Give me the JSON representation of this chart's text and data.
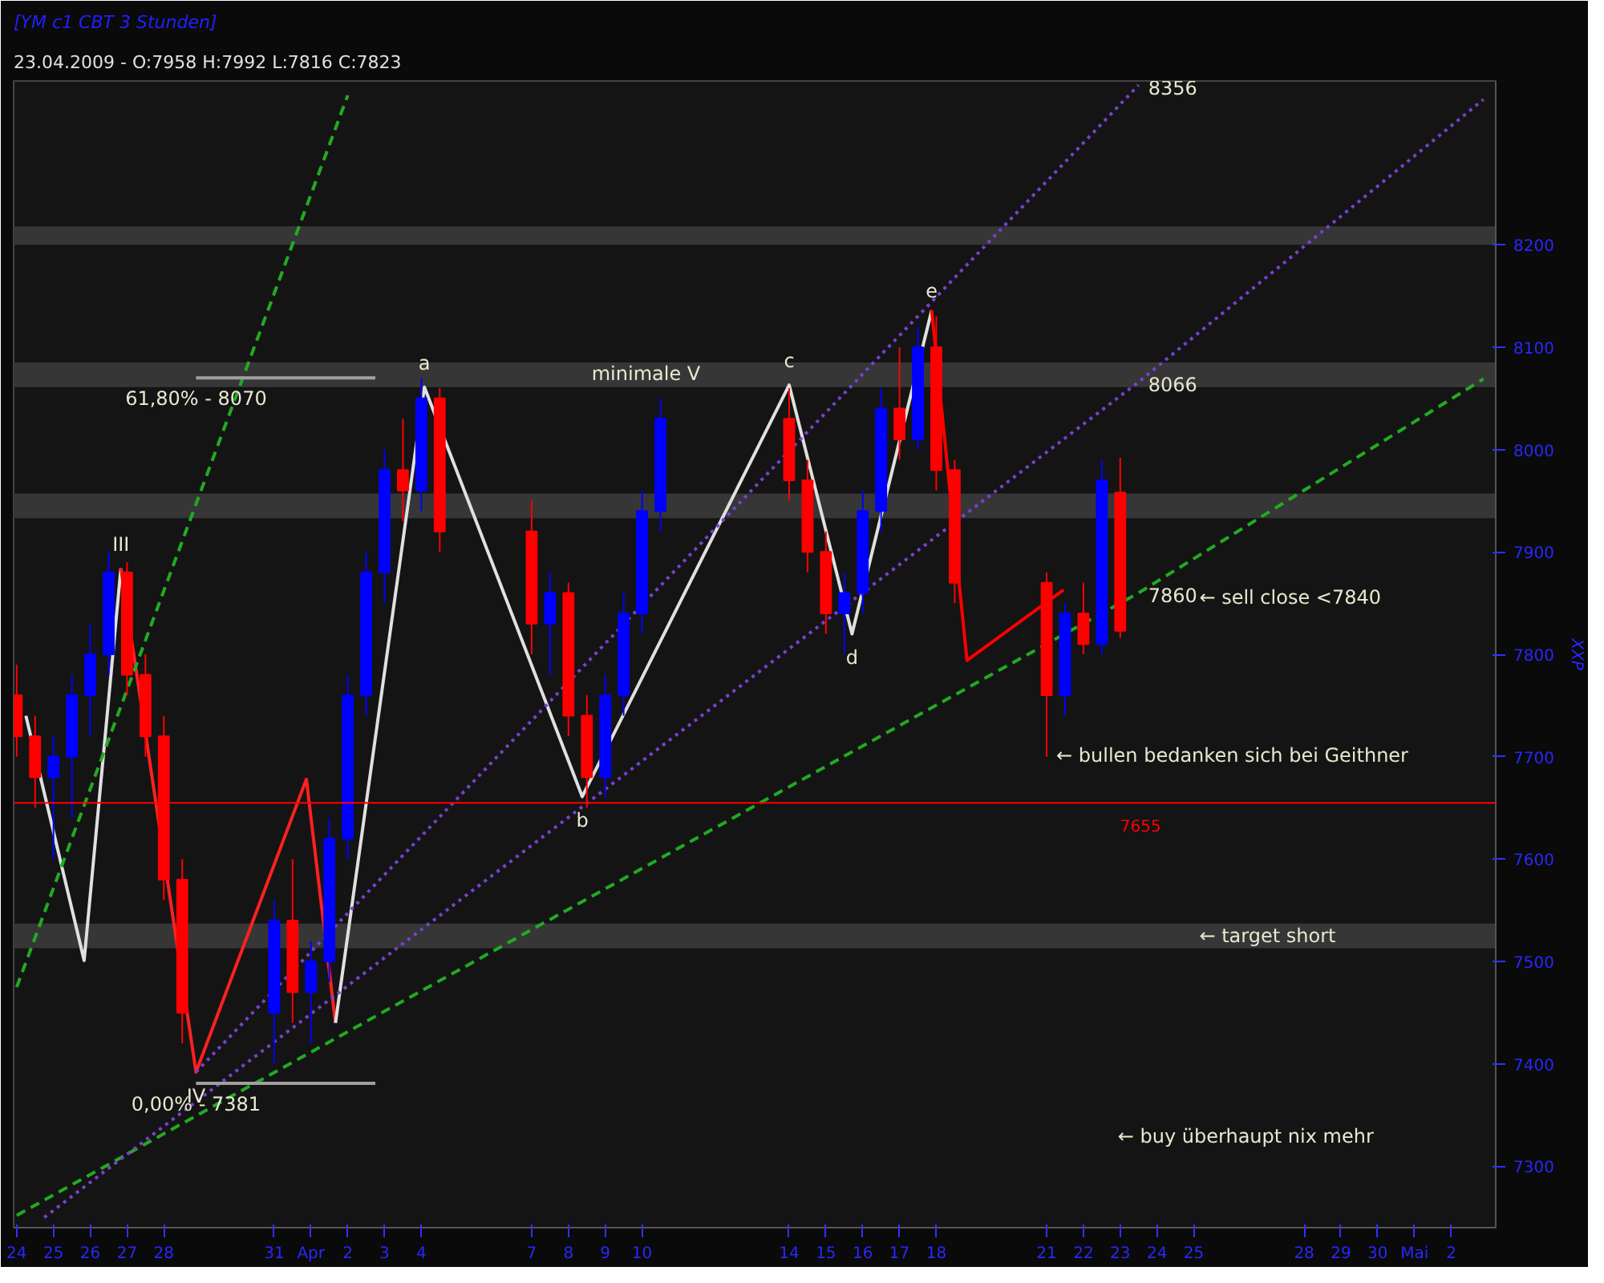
{
  "chart_data": {
    "type": "candlestick",
    "title": "[YM c1 CBT  3 Stunden]",
    "subtitle": "23.04.2009 - O:7958 H:7992 L:7816 C:7823",
    "ylabel": "XXP",
    "x": [
      "2009-03-24T00:00",
      "2009-03-24T12:00",
      "2009-03-25T00:00",
      "2009-03-25T12:00",
      "2009-03-26T00:00",
      "2009-03-26T12:00",
      "2009-03-27T00:00",
      "2009-03-27T12:00",
      "2009-03-28T00:00",
      "2009-03-28T12:00",
      "2009-03-31T00:00",
      "2009-03-31T12:00",
      "2009-04-01T00:00",
      "2009-04-01T12:00",
      "2009-04-02T00:00",
      "2009-04-02T12:00",
      "2009-04-03T00:00",
      "2009-04-03T12:00",
      "2009-04-04T00:00",
      "2009-04-04T12:00",
      "2009-04-07T00:00",
      "2009-04-07T12:00",
      "2009-04-08T00:00",
      "2009-04-08T12:00",
      "2009-04-09T00:00",
      "2009-04-09T12:00",
      "2009-04-10T00:00",
      "2009-04-10T12:00",
      "2009-04-14T00:00",
      "2009-04-14T12:00",
      "2009-04-15T00:00",
      "2009-04-15T12:00",
      "2009-04-16T00:00",
      "2009-04-16T12:00",
      "2009-04-17T00:00",
      "2009-04-17T12:00",
      "2009-04-18T00:00",
      "2009-04-18T12:00",
      "2009-04-21T00:00",
      "2009-04-21T12:00",
      "2009-04-22T00:00",
      "2009-04-22T12:00",
      "2009-04-23T00:00"
    ],
    "ohlc": [
      [
        7760,
        7790,
        7700,
        7720
      ],
      [
        7720,
        7740,
        7650,
        7680
      ],
      [
        7680,
        7720,
        7600,
        7700
      ],
      [
        7700,
        7780,
        7640,
        7760
      ],
      [
        7760,
        7830,
        7720,
        7800
      ],
      [
        7800,
        7900,
        7780,
        7880
      ],
      [
        7880,
        7890,
        7760,
        7780
      ],
      [
        7780,
        7800,
        7700,
        7720
      ],
      [
        7720,
        7740,
        7560,
        7580
      ],
      [
        7580,
        7600,
        7420,
        7450
      ],
      [
        7450,
        7560,
        7400,
        7540
      ],
      [
        7540,
        7600,
        7440,
        7470
      ],
      [
        7470,
        7520,
        7420,
        7500
      ],
      [
        7500,
        7640,
        7480,
        7620
      ],
      [
        7620,
        7780,
        7600,
        7760
      ],
      [
        7760,
        7900,
        7740,
        7880
      ],
      [
        7880,
        8000,
        7850,
        7980
      ],
      [
        7980,
        8030,
        7930,
        7960
      ],
      [
        7960,
        8070,
        7940,
        8050
      ],
      [
        8050,
        8060,
        7900,
        7920
      ],
      [
        7920,
        7950,
        7800,
        7830
      ],
      [
        7830,
        7880,
        7780,
        7860
      ],
      [
        7860,
        7870,
        7720,
        7740
      ],
      [
        7740,
        7760,
        7650,
        7680
      ],
      [
        7680,
        7780,
        7660,
        7760
      ],
      [
        7760,
        7860,
        7740,
        7840
      ],
      [
        7840,
        7960,
        7820,
        7940
      ],
      [
        7940,
        8050,
        7920,
        8030
      ],
      [
        8030,
        8060,
        7950,
        7970
      ],
      [
        7970,
        7990,
        7880,
        7900
      ],
      [
        7900,
        7920,
        7820,
        7840
      ],
      [
        7840,
        7880,
        7800,
        7860
      ],
      [
        7860,
        7960,
        7840,
        7940
      ],
      [
        7940,
        8060,
        7920,
        8040
      ],
      [
        8040,
        8100,
        7990,
        8010
      ],
      [
        8010,
        8120,
        8000,
        8100
      ],
      [
        8100,
        8130,
        7960,
        7980
      ],
      [
        7980,
        7990,
        7850,
        7870
      ],
      [
        7870,
        7880,
        7700,
        7760
      ],
      [
        7760,
        7850,
        7740,
        7840
      ],
      [
        7840,
        7870,
        7800,
        7810
      ],
      [
        7810,
        7990,
        7800,
        7970
      ],
      [
        7958,
        7992,
        7816,
        7823
      ]
    ],
    "colors": [
      "#ff0000",
      "#ff0000",
      "#0000ff",
      "#0000ff",
      "#0000ff",
      "#0000ff",
      "#ff0000",
      "#ff0000",
      "#ff0000",
      "#ff0000",
      "#0000ff",
      "#ff0000",
      "#0000ff",
      "#0000ff",
      "#0000ff",
      "#0000ff",
      "#0000ff",
      "#ff0000",
      "#0000ff",
      "#ff0000",
      "#ff0000",
      "#0000ff",
      "#ff0000",
      "#ff0000",
      "#0000ff",
      "#0000ff",
      "#0000ff",
      "#0000ff",
      "#ff0000",
      "#ff0000",
      "#ff0000",
      "#0000ff",
      "#0000ff",
      "#0000ff",
      "#ff0000",
      "#0000ff",
      "#ff0000",
      "#ff0000",
      "#ff0000",
      "#0000ff",
      "#ff0000",
      "#0000ff",
      "#ff0000"
    ],
    "series": [
      {
        "type": "line",
        "color": "#e0e0e0",
        "line_style": "solid",
        "x": [
          "2009-03-24T06:00",
          "2009-03-25T20:00",
          "2009-03-26T20:00"
        ],
        "values": [
          7740,
          7501,
          7884
        ]
      },
      {
        "type": "line",
        "color": "#ff2020",
        "line_style": "solid",
        "x": [
          "2009-03-26T20:00",
          "2009-03-28T21:00",
          "2009-03-31T21:00",
          "2009-04-01T16:00"
        ],
        "values": [
          7884,
          7392,
          7678,
          7440
        ]
      },
      {
        "type": "line",
        "color": "#e0e0e0",
        "line_style": "solid",
        "x": [
          "2009-04-01T16:00",
          "2009-04-04T02:00",
          "2009-04-08T09:00",
          "2009-04-14T00:00",
          "2009-04-15T17:00",
          "2009-04-17T21:00"
        ],
        "values": [
          7440,
          8061,
          7661,
          8063,
          7820,
          8136
        ]
      },
      {
        "type": "line",
        "color": "#ff0000",
        "line_style": "solid",
        "x": [
          "2009-04-17T21:00",
          "2009-04-18T20:00",
          "2009-04-21T11:00"
        ],
        "values": [
          8136,
          7794,
          7863
        ]
      },
      {
        "type": "line",
        "color": "#22aa22",
        "line_style": "dashed",
        "x": [
          "2009-03-24T00:00",
          "2009-04-23T12:00",
          "2009-05-02T21:00"
        ],
        "values": [
          7252,
          7860,
          8069
        ]
      },
      {
        "type": "line",
        "color": "#22aa22",
        "line_style": "dashed",
        "x": [
          "2009-03-24T00:00",
          "2009-04-02T00:00"
        ],
        "values": [
          7475,
          8346
        ]
      },
      {
        "type": "line",
        "color": "#7a40d0",
        "line_style": "dotted",
        "x": [
          "2009-03-28T21:00",
          "2009-04-23T12:00"
        ],
        "values": [
          7392,
          8356
        ]
      },
      {
        "type": "line",
        "color": "#7a40d0",
        "line_style": "dotted",
        "x": [
          "2009-03-24T18:00",
          "2009-04-23T12:00",
          "2009-05-02T21:00"
        ],
        "values": [
          7250,
          8066,
          8342
        ]
      },
      {
        "type": "line",
        "color": "#a0a0a0",
        "line_style": "solid",
        "x": [
          "2009-03-28T21:00",
          "2009-04-02T18:00"
        ],
        "values": [
          8070,
          8070
        ]
      },
      {
        "type": "line",
        "color": "#a0a0a0",
        "line_style": "solid",
        "x": [
          "2009-03-28T21:00",
          "2009-04-02T18:00"
        ],
        "values": [
          7381,
          7381
        ]
      }
    ],
    "bands": [
      {
        "axis": "y",
        "from": 8200,
        "to": 8218,
        "color": "#3a3a3a"
      },
      {
        "axis": "y",
        "from": 8061,
        "to": 8085,
        "color": "#3a3a3a"
      },
      {
        "axis": "y",
        "from": 7933,
        "to": 7957,
        "color": "#3a3a3a"
      },
      {
        "axis": "y",
        "from": 7513,
        "to": 7537,
        "color": "#3a3a3a"
      }
    ],
    "ref_lines": [
      {
        "axis": "y",
        "value": 7655,
        "label": "7655",
        "color": "#ff0000"
      }
    ],
    "annotations": [
      {
        "text": "III",
        "x": "2009-03-26T20:00",
        "y": 7884
      },
      {
        "text": "IV",
        "x": "2009-03-28T21:00",
        "y": 7392
      },
      {
        "text": "a",
        "x": "2009-04-04T02:00",
        "y": 8061
      },
      {
        "text": "b",
        "x": "2009-04-08T09:00",
        "y": 7661
      },
      {
        "text": "c",
        "x": "2009-04-14T00:00",
        "y": 8063
      },
      {
        "text": "d",
        "x": "2009-04-15T17:00",
        "y": 7820
      },
      {
        "text": "e",
        "x": "2009-04-17T21:00",
        "y": 8136
      },
      "minimale V",
      {
        "text": "61,80% - 8070",
        "x": "2009-03-28T21:00",
        "y": 8070
      },
      {
        "text": "0,00% - 7381",
        "x": "2009-03-28T21:00",
        "y": 7381
      },
      {
        "text": "8356",
        "x": "2009-04-23T12:00",
        "y": 8356
      },
      {
        "text": "8066",
        "x": "2009-04-23T12:00",
        "y": 8066
      },
      {
        "text": "7860",
        "x": "2009-04-23T12:00",
        "y": 7860
      },
      "← sell close <7840",
      {
        "text": "← bullen bedanken sich bei Geithner",
        "x": "2009-04-21T00:00",
        "y": 7700
      },
      "← target short",
      "← buy überhaupt nix mehr"
    ],
    "xlim": [
      "2009-03-23T22:00",
      "2009-05-03T05:00"
    ],
    "ylim": [
      7240,
      8360
    ],
    "xticks": [
      {
        "value": "2009-03-24",
        "label": "24"
      },
      {
        "value": "2009-03-25",
        "label": "25"
      },
      {
        "value": "2009-03-26",
        "label": "26"
      },
      {
        "value": "2009-03-27",
        "label": "27"
      },
      {
        "value": "2009-03-28",
        "label": "28"
      },
      {
        "value": "2009-03-31",
        "label": "31"
      },
      {
        "value": "2009-04-01",
        "label": "Apr"
      },
      {
        "value": "2009-04-02",
        "label": "2"
      },
      {
        "value": "2009-04-03",
        "label": "3"
      },
      {
        "value": "2009-04-04",
        "label": "4"
      },
      {
        "value": "2009-04-07",
        "label": "7"
      },
      {
        "value": "2009-04-08",
        "label": "8"
      },
      {
        "value": "2009-04-09",
        "label": "9"
      },
      {
        "value": "2009-04-10",
        "label": "10"
      },
      {
        "value": "2009-04-14",
        "label": "14"
      },
      {
        "value": "2009-04-15",
        "label": "15"
      },
      {
        "value": "2009-04-16",
        "label": "16"
      },
      {
        "value": "2009-04-17",
        "label": "17"
      },
      {
        "value": "2009-04-18",
        "label": "18"
      },
      {
        "value": "2009-04-21",
        "label": "21"
      },
      {
        "value": "2009-04-22",
        "label": "22"
      },
      {
        "value": "2009-04-23",
        "label": "23"
      },
      {
        "value": "2009-04-24",
        "label": "24"
      },
      {
        "value": "2009-04-25",
        "label": "25"
      },
      {
        "value": "2009-04-28",
        "label": "28"
      },
      {
        "value": "2009-04-29",
        "label": "29"
      },
      {
        "value": "2009-04-30",
        "label": "30"
      },
      {
        "value": "2009-05-01",
        "label": "Mai"
      },
      {
        "value": "2009-05-02",
        "label": "2"
      }
    ],
    "yticks": [
      7300,
      7400,
      7500,
      7600,
      7700,
      7800,
      7900,
      8000,
      8100,
      8200
    ],
    "grid": false
  }
}
